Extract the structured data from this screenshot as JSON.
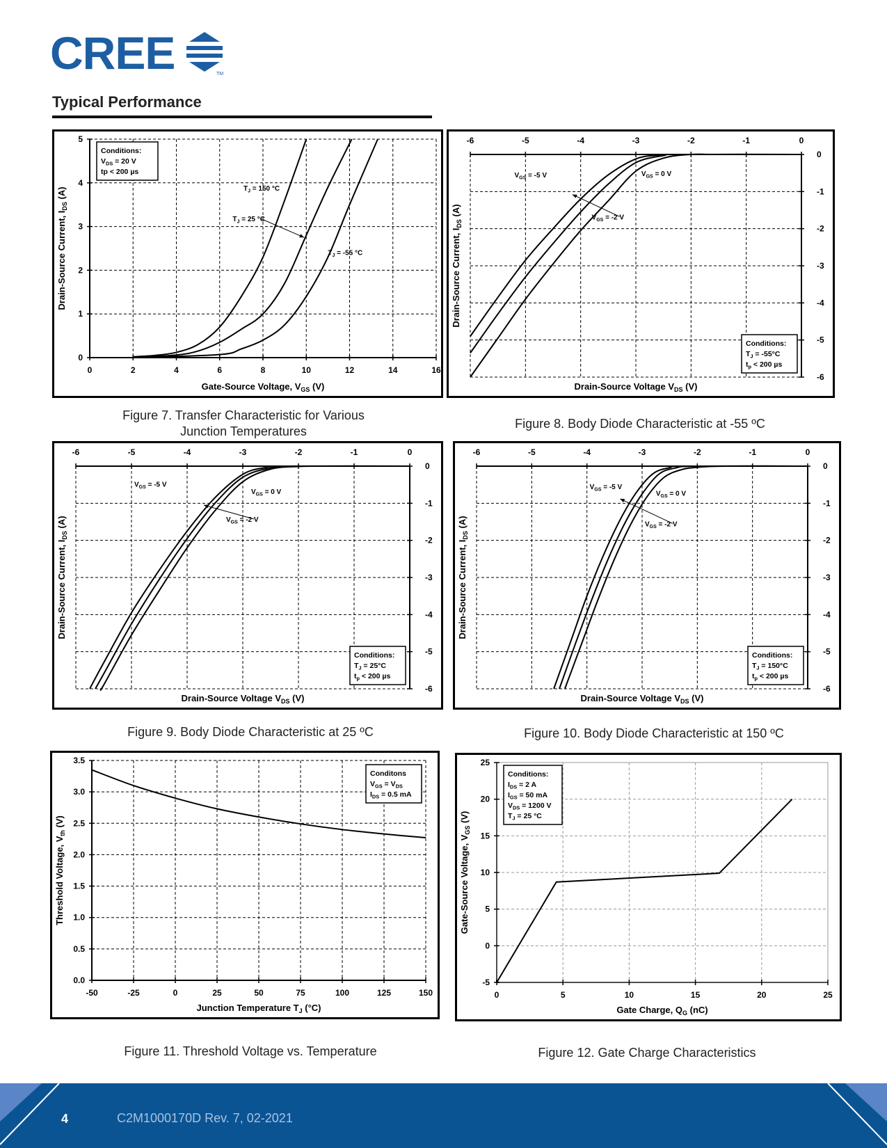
{
  "brand": {
    "name": "CREE",
    "trademark": "TM",
    "color": "#1d5ea3"
  },
  "section": {
    "title": "Typical Performance"
  },
  "footer": {
    "page": "4",
    "doc": "C2M1000170D Rev. 7,   02-2021",
    "color": "#0a5494"
  },
  "chart_data": [
    {
      "id": "fig7",
      "type": "line",
      "caption": "Figure 7.  Transfer Characteristic for Various Junction Temperatures",
      "xlabel": "Gate-Source Voltage, V",
      "xlabel_sub": "GS",
      "xlabel_tail": " (V)",
      "ylabel": "Drain-Source Current, I",
      "ylabel_sub": "DS",
      "ylabel_tail": " (A)",
      "xlim": [
        0,
        16
      ],
      "ylim": [
        0,
        5
      ],
      "xticks": [
        0,
        2,
        4,
        6,
        8,
        10,
        12,
        14,
        16
      ],
      "yticks": [
        0,
        1,
        2,
        3,
        4,
        5
      ],
      "x_axis_position": "bottom",
      "y_axis_position": "left",
      "grid": true,
      "legend": {
        "placement": "top-left",
        "lines": [
          "Conditions:",
          "V_DS = 20 V",
          "tp < 200 µs"
        ]
      },
      "series": [
        {
          "name": "T_J = 150 °C",
          "x": [
            2,
            3,
            4,
            5,
            6,
            7,
            8,
            9,
            10
          ],
          "y": [
            0.02,
            0.05,
            0.12,
            0.3,
            0.7,
            1.4,
            2.3,
            3.6,
            5.0
          ]
        },
        {
          "name": "T_J = 25 °C",
          "x": [
            2,
            4,
            5,
            6,
            7,
            8,
            9,
            10,
            11,
            12.1
          ],
          "y": [
            0.0,
            0.06,
            0.15,
            0.35,
            0.65,
            1.0,
            1.7,
            2.8,
            3.9,
            5.0
          ]
        },
        {
          "name": "T_J = -55 °C",
          "x": [
            2,
            6,
            7,
            8,
            9,
            10,
            11,
            12,
            13.3
          ],
          "y": [
            0.0,
            0.07,
            0.2,
            0.4,
            0.75,
            1.4,
            2.3,
            3.5,
            5.0
          ]
        }
      ],
      "annotations": [
        {
          "text": "T_J = 150 °C",
          "at": [
            7.1,
            3.82
          ]
        },
        {
          "text": "T_J = 25 °C",
          "at": [
            6.6,
            3.12
          ],
          "arrow_to": [
            9.9,
            2.75
          ]
        },
        {
          "text": "T_J = -55 °C",
          "at": [
            11.0,
            2.35
          ]
        }
      ]
    },
    {
      "id": "fig8",
      "type": "line",
      "caption": "Figure 8.  Body Diode Characteristic at -55 ºC",
      "xlabel": "Drain-Source Voltage V",
      "xlabel_sub": "DS",
      "xlabel_tail": " (V)",
      "ylabel": "Drain-Source Current, I",
      "ylabel_sub": "DS",
      "ylabel_tail": " (A)",
      "xlim": [
        -6,
        0
      ],
      "ylim": [
        -6,
        0
      ],
      "xticks": [
        -6,
        -5,
        -4,
        -3,
        -2,
        -1,
        0
      ],
      "yticks": [
        0,
        -1,
        -2,
        -3,
        -4,
        -5,
        -6
      ],
      "x_axis_position": "top",
      "y_axis_position": "right",
      "grid": true,
      "legend": {
        "placement": "bottom-right",
        "lines": [
          "Conditions:",
          "T_J = -55°C",
          "t_p < 200 µs"
        ]
      },
      "series": [
        {
          "name": "V_GS = -5 V",
          "x": [
            -6.0,
            -5.5,
            -5.0,
            -4.5,
            -4.0,
            -3.5,
            -3.0,
            -2.6,
            -2.3,
            0
          ],
          "y": [
            -4.9,
            -3.85,
            -2.85,
            -2.0,
            -1.2,
            -0.55,
            -0.12,
            -0.02,
            0,
            0
          ]
        },
        {
          "name": "V_GS = -2 V",
          "x": [
            -6.0,
            -5.5,
            -5.0,
            -4.5,
            -4.0,
            -3.5,
            -3.0,
            -2.5,
            -2.2,
            0
          ],
          "y": [
            -5.35,
            -4.3,
            -3.3,
            -2.4,
            -1.55,
            -0.8,
            -0.22,
            -0.03,
            0,
            0
          ]
        },
        {
          "name": "V_GS = 0 V",
          "x": [
            -6.0,
            -5.5,
            -5.0,
            -4.5,
            -4.0,
            -3.5,
            -3.0,
            -2.5,
            -2.0,
            -1.5,
            0
          ],
          "y": [
            -6.0,
            -4.95,
            -3.9,
            -2.95,
            -2.05,
            -1.25,
            -0.45,
            -0.1,
            0,
            0,
            0
          ]
        }
      ],
      "annotations": [
        {
          "text": "V_GS = -5 V",
          "at": [
            -5.2,
            -0.62
          ]
        },
        {
          "text": "V_GS = 0 V",
          "at": [
            -2.9,
            -0.58
          ]
        },
        {
          "text": "V_GS = -2 V",
          "at": [
            -3.8,
            -1.75
          ],
          "arrow_to": [
            -4.15,
            -1.08
          ]
        }
      ]
    },
    {
      "id": "fig9",
      "type": "line",
      "caption": "Figure 9.  Body Diode Characteristic at 25 ºC",
      "xlabel": "Drain-Source Voltage V",
      "xlabel_sub": "DS",
      "xlabel_tail": " (V)",
      "ylabel": "Drain-Source Current, I",
      "ylabel_sub": "DS",
      "ylabel_tail": " (A)",
      "xlim": [
        -6,
        0
      ],
      "ylim": [
        -6,
        0
      ],
      "xticks": [
        -6,
        -5,
        -4,
        -3,
        -2,
        -1,
        0
      ],
      "yticks": [
        0,
        -1,
        -2,
        -3,
        -4,
        -5,
        -6
      ],
      "x_axis_position": "top",
      "y_axis_position": "right",
      "grid": true,
      "legend": {
        "placement": "bottom-right",
        "lines": [
          "Conditions:",
          "T_J = 25°C",
          "t_p < 200 µs"
        ]
      },
      "series": [
        {
          "name": "V_GS = -5 V",
          "x": [
            -5.75,
            -5.5,
            -5.0,
            -4.5,
            -4.0,
            -3.5,
            -3.0,
            -2.6,
            -2.2,
            0
          ],
          "y": [
            -6.0,
            -5.3,
            -3.95,
            -2.8,
            -1.75,
            -0.85,
            -0.22,
            -0.04,
            0,
            0
          ]
        },
        {
          "name": "V_GS = -2 V",
          "x": [
            -5.65,
            -5.5,
            -5.0,
            -4.5,
            -4.0,
            -3.5,
            -3.0,
            -2.5,
            -2.0,
            0
          ],
          "y": [
            -6.0,
            -5.6,
            -4.25,
            -3.05,
            -1.95,
            -1.0,
            -0.3,
            -0.05,
            0,
            0
          ]
        },
        {
          "name": "V_GS = 0 V",
          "x": [
            -5.55,
            -5.5,
            -5.0,
            -4.5,
            -4.0,
            -3.5,
            -3.0,
            -2.5,
            -2.0,
            -1.5,
            0
          ],
          "y": [
            -6.0,
            -5.9,
            -4.55,
            -3.35,
            -2.2,
            -1.2,
            -0.42,
            -0.08,
            -0.01,
            0,
            0
          ]
        }
      ],
      "annotations": [
        {
          "text": "V_GS = -5 V",
          "at": [
            -4.95,
            -0.55
          ]
        },
        {
          "text": "V_GS = 0 V",
          "at": [
            -2.85,
            -0.75
          ]
        },
        {
          "text": "V_GS = -2 V",
          "at": [
            -3.3,
            -1.5
          ],
          "arrow_to": [
            -3.7,
            -1.05
          ]
        }
      ]
    },
    {
      "id": "fig10",
      "type": "line",
      "caption": "Figure 10.  Body Diode Characteristic at 150 ºC",
      "xlabel": "Drain-Source Voltage V",
      "xlabel_sub": "DS",
      "xlabel_tail": " (V)",
      "ylabel": "Drain-Source Current, I",
      "ylabel_sub": "DS",
      "ylabel_tail": " (A)",
      "xlim": [
        -6,
        0
      ],
      "ylim": [
        -6,
        0
      ],
      "xticks": [
        -6,
        -5,
        -4,
        -3,
        -2,
        -1,
        0
      ],
      "yticks": [
        0,
        -1,
        -2,
        -3,
        -4,
        -5,
        -6
      ],
      "x_axis_position": "top",
      "y_axis_position": "right",
      "grid": true,
      "legend": {
        "placement": "bottom-right",
        "lines": [
          "Conditions:",
          "T_J = 150°C",
          "t_p < 200 µs"
        ]
      },
      "series": [
        {
          "name": "V_GS = -5 V",
          "x": [
            -4.6,
            -4.3,
            -4.0,
            -3.7,
            -3.4,
            -3.1,
            -2.8,
            -2.5,
            -2.2,
            0
          ],
          "y": [
            -6.0,
            -4.75,
            -3.5,
            -2.4,
            -1.45,
            -0.7,
            -0.2,
            -0.04,
            0,
            0
          ]
        },
        {
          "name": "V_GS = -2 V",
          "x": [
            -4.5,
            -4.2,
            -3.9,
            -3.6,
            -3.3,
            -3.0,
            -2.7,
            -2.4,
            -2.0,
            0
          ],
          "y": [
            -6.0,
            -4.75,
            -3.55,
            -2.45,
            -1.5,
            -0.75,
            -0.22,
            -0.05,
            0,
            0
          ]
        },
        {
          "name": "V_GS = 0 V",
          "x": [
            -4.4,
            -4.1,
            -3.8,
            -3.5,
            -3.2,
            -2.9,
            -2.6,
            -2.3,
            -2.0,
            -1.5,
            0
          ],
          "y": [
            -6.0,
            -4.8,
            -3.6,
            -2.5,
            -1.55,
            -0.8,
            -0.3,
            -0.1,
            -0.03,
            0,
            0
          ]
        }
      ],
      "annotations": [
        {
          "text": "V_GS = -5 V",
          "at": [
            -3.95,
            -0.62
          ]
        },
        {
          "text": "V_GS = 0 V",
          "at": [
            -2.75,
            -0.8
          ]
        },
        {
          "text": "V_GS = -2 V",
          "at": [
            -2.95,
            -1.62
          ],
          "arrow_to": [
            -3.4,
            -0.88
          ]
        }
      ]
    },
    {
      "id": "fig11",
      "type": "line",
      "caption": "Figure 11. Threshold Voltage vs. Temperature",
      "xlabel": "Junction Temperature T",
      "xlabel_sub": "J",
      "xlabel_tail": " (°C)",
      "ylabel": "Threshold Voltage, V",
      "ylabel_sub": "th",
      "ylabel_tail": " (V)",
      "xlim": [
        -50,
        150
      ],
      "ylim": [
        0,
        3.5
      ],
      "xticks": [
        -50,
        -25,
        0,
        25,
        50,
        75,
        100,
        125,
        150
      ],
      "yticks": [
        "0.0",
        "0.5",
        "1.0",
        "1.5",
        "2.0",
        "2.5",
        "3.0",
        "3.5"
      ],
      "x_axis_position": "bottom",
      "y_axis_position": "left",
      "grid": true,
      "legend": {
        "placement": "top-right",
        "lines": [
          "Conditons",
          "V_GS = V_DS",
          "I_DS = 0.5 mA"
        ]
      },
      "series": [
        {
          "name": "",
          "x": [
            -50,
            -25,
            0,
            25,
            50,
            75,
            100,
            125,
            150
          ],
          "y": [
            3.35,
            3.1,
            2.9,
            2.73,
            2.6,
            2.49,
            2.4,
            2.33,
            2.27
          ]
        }
      ],
      "annotations": []
    },
    {
      "id": "fig12",
      "type": "line",
      "caption": "Figure 12.  Gate Charge Characteristics",
      "xlabel": "Gate Charge, Q",
      "xlabel_sub": "G",
      "xlabel_tail": " (nC)",
      "ylabel": "Gate-Source Voltage, V",
      "ylabel_sub": "GS",
      "ylabel_tail": " (V)",
      "xlim": [
        0,
        25
      ],
      "ylim": [
        -5,
        25
      ],
      "xticks": [
        0,
        5,
        10,
        15,
        20,
        25
      ],
      "yticks": [
        -5,
        0,
        5,
        10,
        15,
        20,
        25
      ],
      "x_axis_position": "bottom",
      "y_axis_position": "left",
      "grid": true,
      "legend": {
        "placement": "top-left",
        "lines": [
          "Conditions:",
          "I_DS = 2 A",
          "I_GS = 50 mA",
          "V_DS = 1200 V",
          "T_J = 25 °C"
        ]
      },
      "series": [
        {
          "name": "",
          "x": [
            0,
            4.5,
            16.8,
            22.3
          ],
          "y": [
            -5,
            8.7,
            9.9,
            20.0
          ]
        }
      ],
      "annotations": []
    }
  ]
}
